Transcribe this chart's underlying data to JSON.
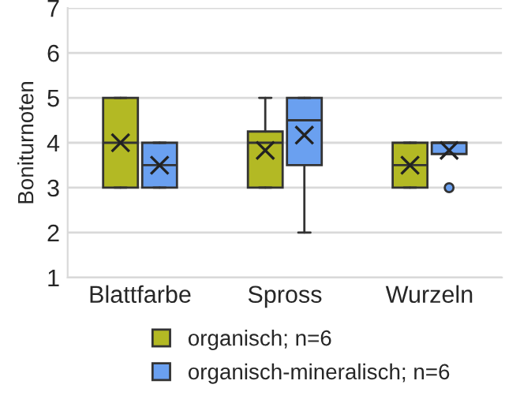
{
  "chart_data": {
    "type": "box",
    "ylabel": "Boniturnoten",
    "categories": [
      "Blattfarbe",
      "Spross",
      "Wurzeln"
    ],
    "series": [
      {
        "name": "organisch; n=6",
        "color": "#b3b924",
        "boxes": [
          {
            "low": 3,
            "q1": 3,
            "median": 4,
            "q3": 5,
            "high": 5,
            "mean": 4
          },
          {
            "low": 3,
            "q1": 3,
            "median": 4,
            "q3": 4.25,
            "high": 5,
            "mean": 3.83
          },
          {
            "low": 3,
            "q1": 3,
            "median": 3.5,
            "q3": 4,
            "high": 4,
            "mean": 3.5
          }
        ]
      },
      {
        "name": "organisch-mineralisch; n=6",
        "color": "#6aa0f0",
        "boxes": [
          {
            "low": 3,
            "q1": 3,
            "median": 3.5,
            "q3": 4,
            "high": 4,
            "mean": 3.5
          },
          {
            "low": 2,
            "q1": 3.5,
            "median": 4.5,
            "q3": 5,
            "high": 5,
            "mean": 4.17
          },
          {
            "low": 3.75,
            "q1": 3.75,
            "median": 4,
            "q3": 4,
            "high": 4,
            "mean": 3.83,
            "outliers": [
              3
            ]
          }
        ]
      }
    ],
    "ylim": [
      1,
      7
    ],
    "yticks": [
      1,
      2,
      3,
      4,
      5,
      6,
      7
    ],
    "grid": "y",
    "legend": "bottom"
  }
}
